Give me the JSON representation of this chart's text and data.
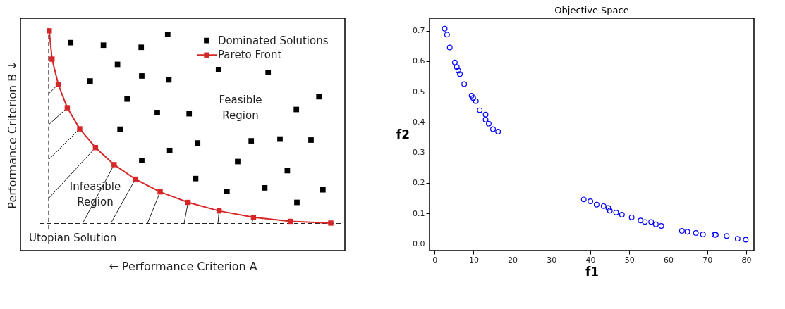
{
  "chart_data": [
    {
      "type": "other",
      "xlabel": "← Performance Criterion A",
      "ylabel": "Performance Criterion B ↓",
      "annotations": [
        "Dominated Solutions",
        "Pareto Front",
        "Feasible\nRegion",
        "Infeasible\nRegion",
        "Utopian Solution"
      ]
    },
    {
      "type": "scatter",
      "title": "Objective Space",
      "xlabel": "f1",
      "ylabel": "f2",
      "grid": false,
      "xlim": [
        -1.3,
        82
      ],
      "xticks": [
        0,
        10,
        20,
        30,
        40,
        50,
        60,
        70,
        80
      ],
      "ylim": [
        -0.022,
        0.741
      ],
      "yticks": [
        {
          "value": 0,
          "label": "0.0"
        },
        0.1,
        0.2,
        0.3,
        0.4,
        0.5,
        0.6,
        0.7
      ],
      "series": [
        {
          "type": "scatter",
          "marker": "circle",
          "color": "#0000ff",
          "x": [
            2.6,
            3.2,
            3.9,
            5.2,
            5.7,
            6.1,
            6.5,
            7.6,
            9.5,
            9.9,
            10.6,
            11.6,
            13.1,
            13.1,
            13.9,
            15.0,
            16.3,
            38.3,
            40.0,
            41.6,
            43.4,
            44.6,
            45.0,
            46.6,
            48.1,
            50.6,
            52.9,
            54.0,
            55.6,
            56.8,
            58.2,
            63.5,
            64.9,
            67.1,
            68.9,
            71.9,
            72.2,
            75.0,
            77.8,
            79.9
          ],
          "values": [
            0.707,
            0.687,
            0.645,
            0.596,
            0.581,
            0.569,
            0.558,
            0.525,
            0.487,
            0.479,
            0.469,
            0.439,
            0.425,
            0.408,
            0.395,
            0.377,
            0.369,
            0.146,
            0.14,
            0.129,
            0.124,
            0.118,
            0.109,
            0.103,
            0.096,
            0.087,
            0.077,
            0.072,
            0.072,
            0.064,
            0.059,
            0.043,
            0.04,
            0.036,
            0.031,
            0.03,
            0.03,
            0.026,
            0.017,
            0.014
          ]
        }
      ]
    }
  ]
}
